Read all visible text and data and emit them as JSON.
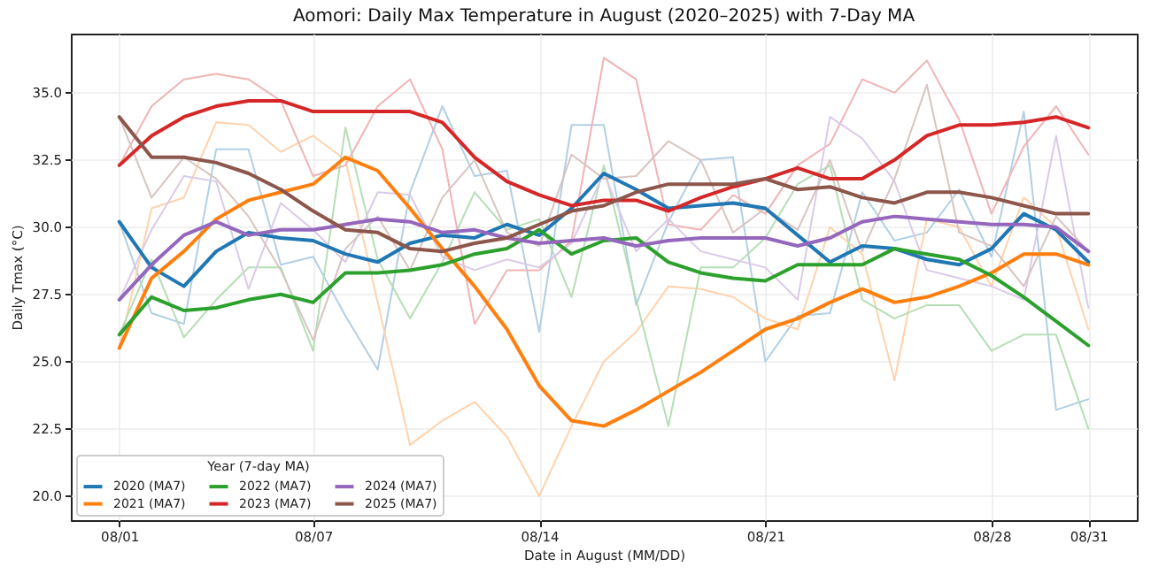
{
  "chart_data": {
    "type": "line",
    "title": "Aomori: Daily Max Temperature in August (2020–2025) with 7-Day MA",
    "xlabel": "Date in August (MM/DD)",
    "ylabel": "Daily Tmax (°C)",
    "legend_title": "Year (7-day MA)",
    "x": [
      "--08-01",
      "--08-02",
      "--08-03",
      "--08-04",
      "--08-05",
      "--08-06",
      "--08-07",
      "--08-08",
      "--08-09",
      "--08-10",
      "--08-11",
      "--08-12",
      "--08-13",
      "--08-14",
      "--08-15",
      "--08-16",
      "--08-17",
      "--08-18",
      "--08-19",
      "--08-20",
      "--08-21",
      "--08-22",
      "--08-23",
      "--08-24",
      "--08-25",
      "--08-26",
      "--08-27",
      "--08-28",
      "--08-29",
      "--08-30",
      "--08-31"
    ],
    "xlim": [
      "--07-30T12:00",
      "--09-01T12:00"
    ],
    "xticks": [
      {
        "value": "--08-01",
        "label": "08/01"
      },
      {
        "value": "--08-07",
        "label": "08/07"
      },
      {
        "value": "--08-14",
        "label": "08/14"
      },
      {
        "value": "--08-21",
        "label": "08/21"
      },
      {
        "value": "--08-28",
        "label": "08/28"
      },
      {
        "value": "--08-31",
        "label": "08/31"
      }
    ],
    "ylim": [
      19.1,
      37.2
    ],
    "yticks": [
      {
        "value": 20,
        "label": "20.0"
      },
      {
        "value": 22.5,
        "label": "22.5"
      },
      {
        "value": 25,
        "label": "25.0"
      },
      {
        "value": 27.5,
        "label": "27.5"
      },
      {
        "value": 30,
        "label": "30.0"
      },
      {
        "value": 32.5,
        "label": "32.5"
      },
      {
        "value": 35,
        "label": "35.0"
      }
    ],
    "grid": true,
    "legend": "bottom left",
    "series": [
      {
        "color": "#b1cfe5",
        "values": [
          30.2,
          26.8,
          26.4,
          32.9,
          32.9,
          28.6,
          28.9,
          26.7,
          24.7,
          31.3,
          34.5,
          31.9,
          32.1,
          26.1,
          33.8,
          33.8,
          27.1,
          30.2,
          32.5,
          32.6,
          25.0,
          26.7,
          26.8,
          31.3,
          29.5,
          29.8,
          31.4,
          28.9,
          34.3,
          23.2,
          23.6
        ]
      },
      {
        "color": "#ffd2ab",
        "values": [
          25.5,
          30.7,
          31.1,
          33.9,
          33.8,
          32.8,
          33.4,
          32.5,
          27.2,
          21.9,
          22.8,
          23.5,
          22.2,
          20.0,
          22.6,
          25.0,
          26.1,
          27.8,
          27.7,
          27.4,
          26.6,
          26.2,
          30.0,
          29.0,
          24.3,
          30.3,
          30.0,
          27.8,
          31.1,
          30.0,
          26.2
        ]
      },
      {
        "color": "#b5deb5",
        "values": [
          26.0,
          28.8,
          25.9,
          27.3,
          28.5,
          28.5,
          25.4,
          33.7,
          28.8,
          26.6,
          28.7,
          31.3,
          29.9,
          30.3,
          27.4,
          32.3,
          27.3,
          22.6,
          28.5,
          28.5,
          29.6,
          31.6,
          32.3,
          27.3,
          26.6,
          27.1,
          27.1,
          25.4,
          26.0,
          26.0,
          22.5
        ]
      },
      {
        "color": "#f1b3b4",
        "values": [
          32.3,
          34.5,
          35.5,
          35.7,
          35.5,
          34.7,
          31.9,
          32.3,
          34.5,
          35.5,
          32.9,
          26.4,
          28.4,
          28.4,
          29.5,
          36.3,
          35.5,
          30.1,
          29.9,
          31.2,
          30.5,
          32.3,
          33.1,
          35.5,
          35.0,
          36.2,
          34.0,
          30.5,
          33.0,
          34.5,
          32.7
        ]
      },
      {
        "color": "#dacae8",
        "values": [
          27.3,
          29.9,
          31.9,
          31.7,
          27.7,
          30.9,
          29.9,
          28.7,
          31.3,
          31.2,
          28.9,
          28.4,
          28.8,
          28.5,
          29.4,
          32.0,
          29.1,
          30.3,
          29.1,
          28.8,
          28.5,
          27.3,
          34.1,
          33.3,
          31.7,
          28.4,
          28.1,
          27.8,
          27.3,
          33.4,
          27.0
        ]
      },
      {
        "color": "#d7c4c0",
        "values": [
          34.1,
          31.1,
          32.6,
          31.8,
          30.4,
          28.4,
          25.8,
          29.2,
          30.4,
          28.4,
          31.1,
          32.5,
          29.8,
          29.3,
          32.7,
          31.8,
          31.9,
          33.2,
          32.5,
          29.8,
          30.7,
          29.9,
          32.5,
          29.1,
          31.8,
          35.3,
          29.8,
          29.3,
          27.8,
          30.4,
          29.1
        ]
      },
      {
        "name": "2020 (MA7)",
        "color": "#1f77b4",
        "values": [
          30.2,
          28.5,
          27.8,
          29.1,
          29.8,
          29.6,
          29.5,
          29.0,
          28.7,
          29.4,
          29.7,
          29.6,
          30.1,
          29.7,
          30.7,
          32.0,
          31.4,
          30.7,
          30.8,
          30.9,
          30.7,
          29.7,
          28.7,
          29.3,
          29.2,
          28.8,
          28.6,
          29.2,
          30.5,
          29.9,
          28.7
        ]
      },
      {
        "name": "2021 (MA7)",
        "color": "#ff7f0e",
        "values": [
          25.5,
          28.1,
          29.1,
          30.3,
          31.0,
          31.3,
          31.6,
          32.6,
          32.1,
          30.7,
          29.2,
          27.8,
          26.2,
          24.1,
          22.8,
          22.6,
          23.2,
          23.9,
          24.6,
          25.4,
          26.2,
          26.6,
          27.2,
          27.7,
          27.2,
          27.4,
          27.8,
          28.3,
          29.0,
          29.0,
          28.6
        ]
      },
      {
        "name": "2022 (MA7)",
        "color": "#2ca02c",
        "values": [
          26.0,
          27.4,
          26.9,
          27.0,
          27.3,
          27.5,
          27.2,
          28.3,
          28.3,
          28.4,
          28.6,
          29.0,
          29.2,
          29.9,
          29.0,
          29.5,
          29.6,
          28.7,
          28.3,
          28.1,
          28.0,
          28.6,
          28.6,
          28.6,
          29.2,
          29.0,
          28.8,
          28.2,
          27.4,
          26.5,
          25.6
        ]
      },
      {
        "name": "2023 (MA7)",
        "color": "#d62728",
        "values": [
          32.3,
          33.4,
          34.1,
          34.5,
          34.7,
          34.7,
          34.3,
          34.3,
          34.3,
          34.3,
          33.9,
          32.6,
          31.7,
          31.2,
          30.8,
          31.0,
          31.0,
          30.6,
          31.1,
          31.5,
          31.8,
          32.2,
          31.8,
          31.8,
          32.5,
          33.4,
          33.8,
          33.8,
          33.9,
          34.1,
          33.7
        ]
      },
      {
        "name": "2024 (MA7)",
        "color": "#9467bd",
        "values": [
          27.3,
          28.6,
          29.7,
          30.2,
          29.7,
          29.9,
          29.9,
          30.1,
          30.3,
          30.2,
          29.8,
          29.9,
          29.6,
          29.4,
          29.5,
          29.6,
          29.3,
          29.5,
          29.6,
          29.6,
          29.6,
          29.3,
          29.6,
          30.2,
          30.4,
          30.3,
          30.2,
          30.1,
          30.1,
          30.0,
          29.1
        ]
      },
      {
        "name": "2025 (MA7)",
        "color": "#8c564b",
        "values": [
          34.1,
          32.6,
          32.6,
          32.4,
          32.0,
          31.4,
          30.6,
          29.9,
          29.8,
          29.2,
          29.1,
          29.4,
          29.6,
          30.1,
          30.6,
          30.8,
          31.3,
          31.6,
          31.6,
          31.6,
          31.8,
          31.4,
          31.5,
          31.1,
          30.9,
          31.3,
          31.3,
          31.1,
          30.8,
          30.5,
          30.5
        ]
      }
    ]
  }
}
